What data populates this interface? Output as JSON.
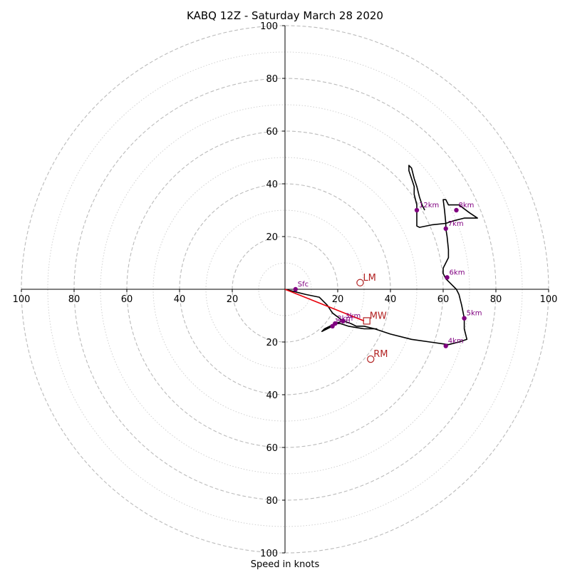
{
  "chart_data": {
    "type": "hodograph",
    "title": "KABQ 12Z - Saturday March 28 2020",
    "xlabel": "Speed in knots",
    "max_speed": 100,
    "ring_labels": [
      "100",
      "80",
      "60",
      "40",
      "20",
      "20",
      "40",
      "60",
      "80",
      "100"
    ],
    "colors": {
      "trace": "#000000",
      "height_markers": "#800080",
      "storm_motion": "#b22222",
      "mean_wind_vector": "#e8000b",
      "rings_major": "#bbbbbb",
      "rings_minor": "#cccccc"
    },
    "trace": [
      [
        0,
        0
      ],
      [
        4,
        -1
      ],
      [
        8,
        -2
      ],
      [
        13,
        -3
      ],
      [
        16,
        -6
      ],
      [
        18,
        -9
      ],
      [
        22,
        -12
      ],
      [
        25,
        -13
      ],
      [
        27,
        -14
      ],
      [
        30,
        -14
      ],
      [
        34,
        -15
      ],
      [
        40,
        -17
      ],
      [
        48,
        -19
      ],
      [
        55,
        -20
      ],
      [
        62,
        -21
      ],
      [
        66,
        -20
      ],
      [
        69,
        -19
      ],
      [
        68,
        -15
      ],
      [
        68,
        -11
      ],
      [
        67,
        -6
      ],
      [
        66,
        -2
      ],
      [
        65,
        0
      ],
      [
        61,
        4
      ],
      [
        60,
        6
      ],
      [
        60,
        8
      ],
      [
        61,
        10
      ],
      [
        62,
        12
      ],
      [
        62,
        15
      ],
      [
        61.5,
        20
      ],
      [
        61,
        23
      ],
      [
        61,
        25
      ],
      [
        64,
        26
      ],
      [
        68,
        27
      ],
      [
        73,
        27
      ],
      [
        70,
        29
      ],
      [
        66,
        32
      ],
      [
        62,
        32
      ],
      [
        61,
        34
      ],
      [
        60,
        34
      ],
      [
        60.5,
        30
      ],
      [
        61,
        25
      ],
      [
        56,
        24.5
      ],
      [
        51,
        23.5
      ],
      [
        50,
        24
      ],
      [
        50,
        27
      ],
      [
        50,
        30
      ],
      [
        50,
        32
      ],
      [
        49,
        36
      ],
      [
        49,
        39
      ],
      [
        48,
        42
      ],
      [
        47,
        45
      ],
      [
        47,
        47
      ],
      [
        48,
        46
      ],
      [
        49,
        42
      ],
      [
        50,
        39
      ],
      [
        51,
        35
      ],
      [
        52,
        32
      ],
      [
        53,
        30
      ]
    ],
    "return_leg": [
      [
        35,
        -15
      ],
      [
        30,
        -15
      ],
      [
        24,
        -14
      ],
      [
        21,
        -13
      ],
      [
        19,
        -13
      ],
      [
        18,
        -14
      ],
      [
        16,
        -15
      ],
      [
        14,
        -16
      ],
      [
        15,
        -15
      ],
      [
        17,
        -14
      ],
      [
        19,
        -13
      ],
      [
        22,
        -12
      ]
    ],
    "height_markers": [
      {
        "label": "Sfc",
        "u": 4,
        "v": 0
      },
      {
        "label": "1km",
        "u": 18,
        "v": -14
      },
      {
        "label": "2km",
        "u": 19,
        "v": -13
      },
      {
        "label": "3km",
        "u": 22,
        "v": -12
      },
      {
        "label": "4km",
        "u": 61,
        "v": -21.5
      },
      {
        "label": "5km",
        "u": 68,
        "v": -11
      },
      {
        "label": "6km",
        "u": 61.5,
        "v": 4.5
      },
      {
        "label": "7km",
        "u": 61,
        "v": 23
      },
      {
        "label": "8km",
        "u": 65,
        "v": 30
      },
      {
        "label": "12km",
        "u": 50,
        "v": 30
      }
    ],
    "storm_motion": [
      {
        "label": "LM",
        "u": 28.5,
        "v": 2.5,
        "marker": "circle"
      },
      {
        "label": "MW",
        "u": 31,
        "v": -12,
        "marker": "square"
      },
      {
        "label": "RM",
        "u": 32.5,
        "v": -26.5,
        "marker": "circle"
      }
    ],
    "mean_wind_vector": {
      "u": 30,
      "v": -12
    }
  }
}
